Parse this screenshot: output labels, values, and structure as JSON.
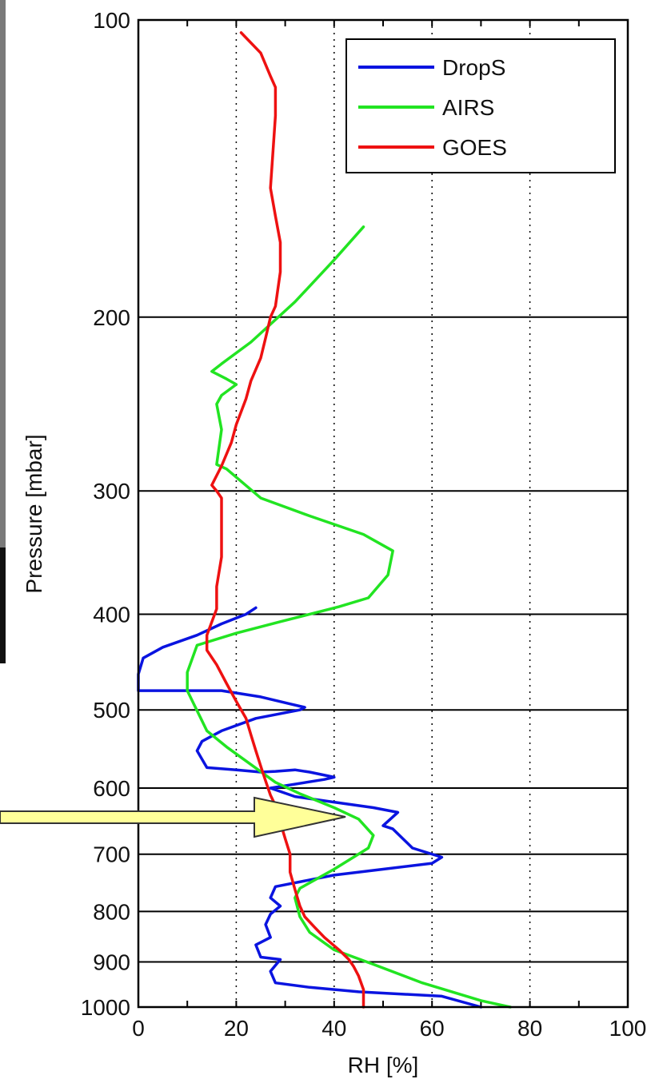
{
  "chart_data": {
    "type": "line",
    "title": "",
    "xlabel": "RH [%]",
    "ylabel": "Pressure [mbar]",
    "xlim": [
      0,
      100
    ],
    "ylim": [
      100,
      1000
    ],
    "y_scale": "log",
    "y_reversed": true,
    "x_ticks": [
      0,
      20,
      40,
      60,
      80,
      100
    ],
    "x_tick_labels": [
      "0",
      "20",
      "40",
      "60",
      "80",
      "100"
    ],
    "y_ticks": [
      100,
      200,
      300,
      400,
      500,
      600,
      700,
      800,
      900,
      1000
    ],
    "y_tick_labels": [
      "100",
      "200",
      "300",
      "400",
      "500",
      "600",
      "700",
      "800",
      "900",
      "1000"
    ],
    "grid": {
      "x": "dotted",
      "y": "solid"
    },
    "legend_position": "top-right",
    "annotation": {
      "type": "arrow",
      "points_to": {
        "x": 42,
        "p": 640
      }
    },
    "series": [
      {
        "name": "DropS",
        "color": "#0a14e0",
        "points": [
          [
            70,
            1000
          ],
          [
            62,
            975
          ],
          [
            45,
            965
          ],
          [
            35,
            955
          ],
          [
            28,
            945
          ],
          [
            27,
            920
          ],
          [
            29,
            895
          ],
          [
            25,
            890
          ],
          [
            24,
            865
          ],
          [
            27,
            850
          ],
          [
            26,
            825
          ],
          [
            27,
            805
          ],
          [
            29,
            790
          ],
          [
            27,
            775
          ],
          [
            28,
            755
          ],
          [
            40,
            735
          ],
          [
            50,
            725
          ],
          [
            60,
            715
          ],
          [
            62,
            705
          ],
          [
            56,
            690
          ],
          [
            52,
            660
          ],
          [
            50,
            655
          ],
          [
            53,
            635
          ],
          [
            48,
            628
          ],
          [
            40,
            620
          ],
          [
            32,
            612
          ],
          [
            27,
            600
          ],
          [
            38,
            588
          ],
          [
            40,
            585
          ],
          [
            35,
            578
          ],
          [
            32,
            575
          ],
          [
            28,
            577
          ],
          [
            25,
            578
          ],
          [
            20,
            575
          ],
          [
            14,
            572
          ],
          [
            12,
            550
          ],
          [
            13,
            538
          ],
          [
            17,
            525
          ],
          [
            24,
            510
          ],
          [
            33,
            500
          ],
          [
            34,
            497
          ],
          [
            31,
            493
          ],
          [
            25,
            485
          ],
          [
            17,
            478
          ],
          [
            0,
            478
          ],
          [
            0,
            460
          ],
          [
            1,
            443
          ],
          [
            5,
            432
          ],
          [
            12,
            420
          ],
          [
            17,
            409
          ],
          [
            22,
            400
          ],
          [
            24,
            394
          ]
        ]
      },
      {
        "name": "AIRS",
        "color": "#22e422",
        "points": [
          [
            46,
            162
          ],
          [
            40,
            175
          ],
          [
            32,
            193
          ],
          [
            23,
            212
          ],
          [
            17,
            223
          ],
          [
            15,
            227
          ],
          [
            18,
            231
          ],
          [
            20,
            234
          ],
          [
            17,
            240
          ],
          [
            16,
            245
          ],
          [
            17,
            260
          ],
          [
            16,
            282
          ],
          [
            18,
            285
          ],
          [
            25,
            305
          ],
          [
            35,
            318
          ],
          [
            46,
            332
          ],
          [
            52,
            345
          ],
          [
            51,
            365
          ],
          [
            47,
            385
          ],
          [
            41,
            393
          ],
          [
            29,
            407
          ],
          [
            20,
            418
          ],
          [
            12,
            430
          ],
          [
            10,
            458
          ],
          [
            10,
            478
          ],
          [
            14,
            525
          ],
          [
            18,
            545
          ],
          [
            23,
            568
          ],
          [
            28,
            592
          ],
          [
            33,
            608
          ],
          [
            40,
            628
          ],
          [
            45,
            645
          ],
          [
            48,
            670
          ],
          [
            47,
            690
          ],
          [
            40,
            725
          ],
          [
            33,
            758
          ],
          [
            32,
            775
          ],
          [
            33,
            810
          ],
          [
            35,
            840
          ],
          [
            40,
            875
          ],
          [
            48,
            905
          ],
          [
            58,
            945
          ],
          [
            70,
            985
          ],
          [
            76,
            1000
          ]
        ]
      },
      {
        "name": "GOES",
        "color": "#ee1111",
        "points": [
          [
            21,
            103
          ],
          [
            25,
            108
          ],
          [
            27,
            114
          ],
          [
            28,
            117
          ],
          [
            28,
            125
          ],
          [
            27,
            148
          ],
          [
            28,
            158
          ],
          [
            29,
            168
          ],
          [
            29,
            180
          ],
          [
            28,
            195
          ],
          [
            27,
            200
          ],
          [
            26,
            210
          ],
          [
            25,
            220
          ],
          [
            23,
            232
          ],
          [
            22,
            242
          ],
          [
            20,
            257
          ],
          [
            19,
            268
          ],
          [
            17,
            283
          ],
          [
            15,
            296
          ],
          [
            16,
            300
          ],
          [
            17,
            305
          ],
          [
            17,
            325
          ],
          [
            17,
            350
          ],
          [
            16,
            375
          ],
          [
            16,
            395
          ],
          [
            14,
            420
          ],
          [
            14,
            435
          ],
          [
            16,
            450
          ],
          [
            18,
            470
          ],
          [
            20,
            490
          ],
          [
            22,
            510
          ],
          [
            23,
            530
          ],
          [
            24,
            550
          ],
          [
            25,
            570
          ],
          [
            26,
            590
          ],
          [
            27,
            610
          ],
          [
            28,
            625
          ],
          [
            29,
            650
          ],
          [
            30,
            675
          ],
          [
            31,
            700
          ],
          [
            31,
            730
          ],
          [
            32,
            760
          ],
          [
            33,
            790
          ],
          [
            34,
            810
          ],
          [
            36,
            830
          ],
          [
            38,
            850
          ],
          [
            41,
            875
          ],
          [
            43,
            895
          ],
          [
            44,
            910
          ],
          [
            45,
            930
          ],
          [
            46,
            960
          ],
          [
            46,
            1000
          ]
        ]
      }
    ]
  }
}
